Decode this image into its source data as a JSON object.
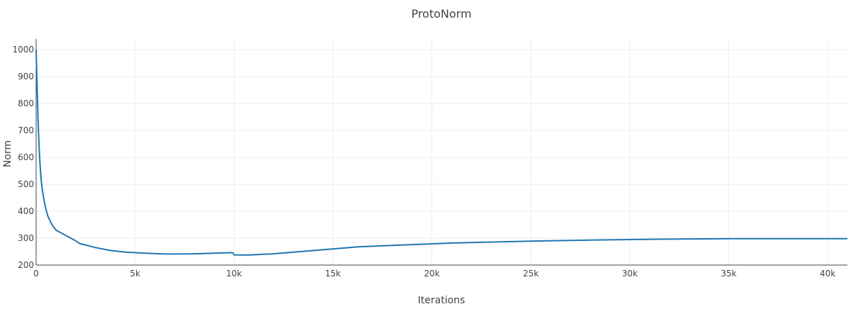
{
  "chart_data": {
    "type": "line",
    "title": "ProtoNorm",
    "xlabel": "Iterations",
    "ylabel": "Norm",
    "xlim": [
      0,
      41000
    ],
    "ylim": [
      200,
      1040
    ],
    "x_ticks": [
      0,
      5000,
      10000,
      15000,
      20000,
      25000,
      30000,
      35000,
      40000
    ],
    "x_tick_labels": [
      "0",
      "5k",
      "10k",
      "15k",
      "20k",
      "25k",
      "30k",
      "35k",
      "40k"
    ],
    "y_ticks": [
      200,
      300,
      400,
      500,
      600,
      700,
      800,
      900,
      1000
    ],
    "y_tick_labels": [
      "200",
      "300",
      "400",
      "500",
      "600",
      "700",
      "800",
      "900",
      "1000"
    ],
    "grid": true,
    "line_color": "#1f77b4",
    "series": [
      {
        "x": [
          0,
          50,
          100,
          150,
          200,
          250,
          300,
          400,
          500,
          600,
          800,
          1000,
          1500,
          2000,
          2200,
          3000,
          3700,
          4500,
          5000,
          5500,
          6500,
          7000,
          8000,
          9000,
          9900,
          9950,
          10000,
          10700,
          12000,
          14000,
          16300,
          18000,
          21000,
          25000,
          28000,
          31500,
          35000,
          38000,
          41000
        ],
        "y": [
          1000,
          860,
          730,
          640,
          570,
          520,
          485,
          440,
          405,
          380,
          350,
          330,
          310,
          290,
          280,
          265,
          255,
          248,
          246,
          244,
          241,
          241,
          242,
          244,
          246,
          245,
          238,
          237,
          242,
          254,
          268,
          273,
          282,
          289,
          293,
          296,
          298,
          298,
          298
        ]
      }
    ]
  }
}
